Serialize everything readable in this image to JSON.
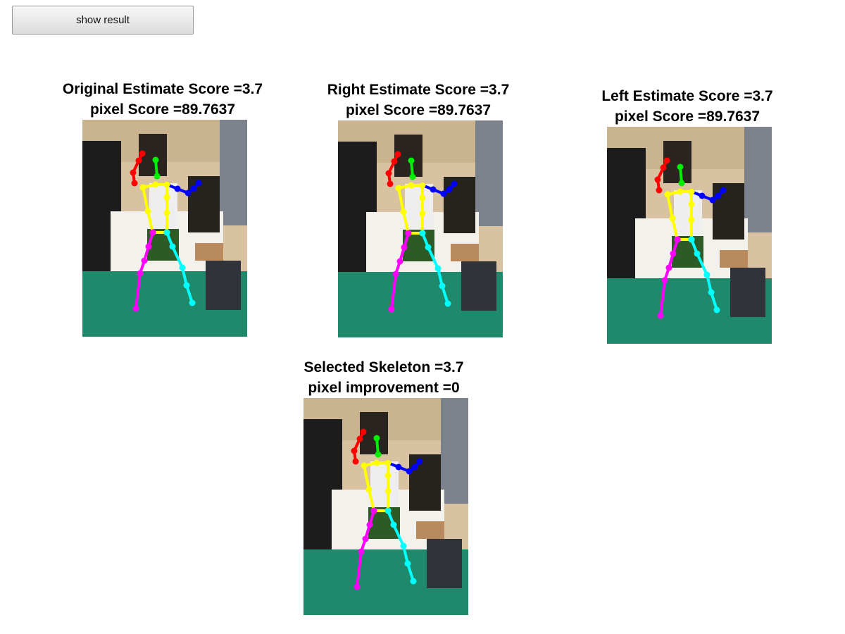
{
  "toolbar": {
    "show_result_label": "show result"
  },
  "panels": [
    {
      "id": "original",
      "title_line1": "Original Estimate Score =3.7",
      "title_line2": "pixel Score =89.7637"
    },
    {
      "id": "right",
      "title_line1": "Right Estimate Score =3.7",
      "title_line2": "pixel Score =89.7637"
    },
    {
      "id": "left",
      "title_line1": "Left Estimate Score =3.7",
      "title_line2": "pixel Score =89.7637"
    },
    {
      "id": "selected",
      "title_line1": "Selected Skeleton =3.7",
      "title_line2": "pixel improvement =0"
    }
  ],
  "skeleton_colors": {
    "head": "#00ee00",
    "right_arm": "#ff0000",
    "left_arm": "#0000ff",
    "torso": "#ffff00",
    "right_leg": "#ff00ff",
    "left_leg": "#00ffff"
  }
}
